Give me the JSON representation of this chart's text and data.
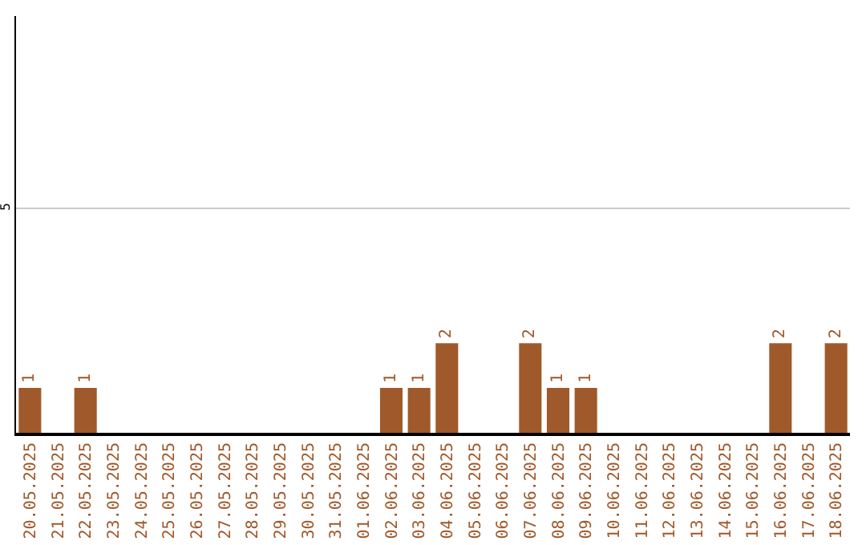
{
  "chart_data": {
    "type": "bar",
    "categories": [
      "20.05.2025",
      "21.05.2025",
      "22.05.2025",
      "23.05.2025",
      "24.05.2025",
      "25.05.2025",
      "26.05.2025",
      "27.05.2025",
      "28.05.2025",
      "29.05.2025",
      "30.05.2025",
      "31.05.2025",
      "01.06.2025",
      "02.06.2025",
      "03.06.2025",
      "04.06.2025",
      "05.06.2025",
      "06.06.2025",
      "07.06.2025",
      "08.06.2025",
      "09.06.2025",
      "10.06.2025",
      "11.06.2025",
      "12.06.2025",
      "13.06.2025",
      "14.06.2025",
      "15.06.2025",
      "16.06.2025",
      "17.06.2025",
      "18.06.2025"
    ],
    "values": [
      1,
      0,
      1,
      0,
      0,
      0,
      0,
      0,
      0,
      0,
      0,
      0,
      0,
      1,
      1,
      2,
      0,
      0,
      2,
      1,
      1,
      0,
      0,
      0,
      0,
      0,
      0,
      2,
      0,
      2
    ],
    "value_labels": [
      "1",
      null,
      "1",
      null,
      null,
      null,
      null,
      null,
      null,
      null,
      null,
      null,
      null,
      "1",
      "1",
      "2",
      null,
      null,
      "2",
      "1",
      "1",
      null,
      null,
      null,
      null,
      null,
      null,
      "2",
      null,
      "2"
    ],
    "color": "#a0592a",
    "ylim": [
      0,
      9.3
    ],
    "yticks": [
      5
    ],
    "grid": "y",
    "legend": false
  }
}
